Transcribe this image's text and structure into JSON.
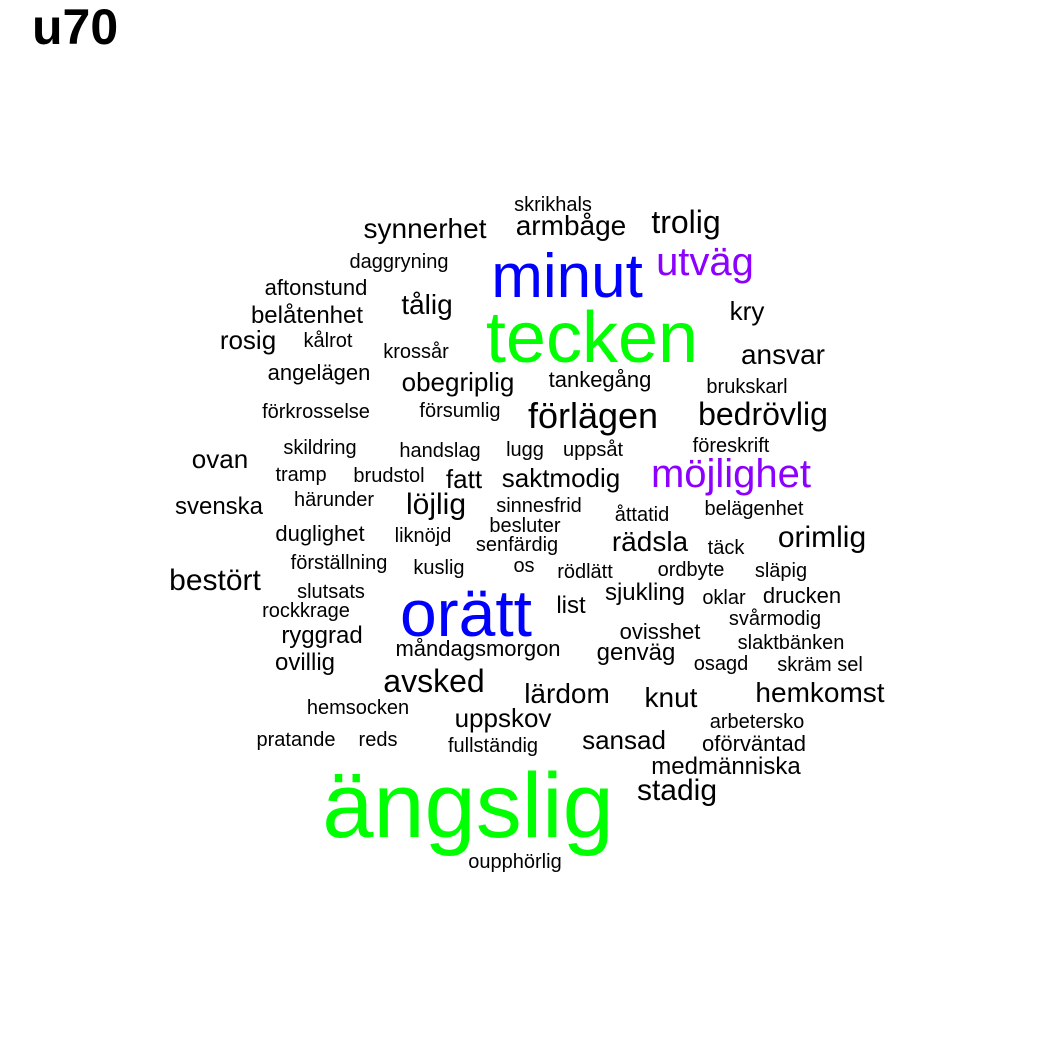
{
  "title": "u70",
  "colors": {
    "black": "#000000",
    "blue": "#0000ff",
    "green": "#00ff00",
    "purple": "#8b00ff"
  },
  "words": [
    {
      "text": "ängslig",
      "color": "#00ff00"
    },
    {
      "text": "tecken",
      "color": "#00ff00"
    },
    {
      "text": "orätt",
      "color": "#0000ff"
    },
    {
      "text": "minut",
      "color": "#0000ff"
    },
    {
      "text": "möjlighet",
      "color": "#8b00ff"
    },
    {
      "text": "utväg",
      "color": "#8b00ff"
    },
    {
      "text": "förlägen",
      "color": "#000000"
    },
    {
      "text": "trolig",
      "color": "#000000"
    },
    {
      "text": "bedrövlig",
      "color": "#000000"
    },
    {
      "text": "avsked",
      "color": "#000000"
    },
    {
      "text": "synnerhet",
      "color": "#000000"
    },
    {
      "text": "armbåge",
      "color": "#000000"
    },
    {
      "text": "tålig",
      "color": "#000000"
    },
    {
      "text": "ansvar",
      "color": "#000000"
    },
    {
      "text": "obegriplig",
      "color": "#000000"
    },
    {
      "text": "rädsla",
      "color": "#000000"
    },
    {
      "text": "orimlig",
      "color": "#000000"
    },
    {
      "text": "bestört",
      "color": "#000000"
    },
    {
      "text": "löjlig",
      "color": "#000000"
    },
    {
      "text": "lärdom",
      "color": "#000000"
    },
    {
      "text": "knut",
      "color": "#000000"
    },
    {
      "text": "hemkomst",
      "color": "#000000"
    },
    {
      "text": "uppskov",
      "color": "#000000"
    },
    {
      "text": "sansad",
      "color": "#000000"
    },
    {
      "text": "stadig",
      "color": "#000000"
    },
    {
      "text": "saktmodig",
      "color": "#000000"
    },
    {
      "text": "fatt",
      "color": "#000000"
    },
    {
      "text": "ovan",
      "color": "#000000"
    },
    {
      "text": "svenska",
      "color": "#000000"
    },
    {
      "text": "belåtenhet",
      "color": "#000000"
    },
    {
      "text": "rosig",
      "color": "#000000"
    },
    {
      "text": "kry",
      "color": "#000000"
    },
    {
      "text": "list",
      "color": "#000000"
    },
    {
      "text": "genväg",
      "color": "#000000"
    },
    {
      "text": "ovillig",
      "color": "#000000"
    },
    {
      "text": "ryggrad",
      "color": "#000000"
    },
    {
      "text": "tankegång",
      "color": "#000000"
    },
    {
      "text": "medmänniska",
      "color": "#000000"
    },
    {
      "text": "ovisshet",
      "color": "#000000"
    },
    {
      "text": "sjukling",
      "color": "#000000"
    },
    {
      "text": "aftonstund",
      "color": "#000000"
    },
    {
      "text": "angelägen",
      "color": "#000000"
    },
    {
      "text": "duglighet",
      "color": "#000000"
    },
    {
      "text": "oförväntad",
      "color": "#000000"
    },
    {
      "text": "skräm sel",
      "color": "#000000"
    },
    {
      "text": "drucken",
      "color": "#000000"
    },
    {
      "text": "måndagsmorgon",
      "color": "#000000"
    },
    {
      "text": "daggryning",
      "color": "#000000"
    },
    {
      "text": "skrikhals",
      "color": "#000000"
    },
    {
      "text": "förkrosselse",
      "color": "#000000"
    },
    {
      "text": "försumlig",
      "color": "#000000"
    },
    {
      "text": "skildring",
      "color": "#000000"
    },
    {
      "text": "handslag",
      "color": "#000000"
    },
    {
      "text": "lugg",
      "color": "#000000"
    },
    {
      "text": "uppsåt",
      "color": "#000000"
    },
    {
      "text": "föreskrift",
      "color": "#000000"
    },
    {
      "text": "tramp",
      "color": "#000000"
    },
    {
      "text": "brudstol",
      "color": "#000000"
    },
    {
      "text": "härunder",
      "color": "#000000"
    },
    {
      "text": "sinnesfrid",
      "color": "#000000"
    },
    {
      "text": "åttatid",
      "color": "#000000"
    },
    {
      "text": "belägenhet",
      "color": "#000000"
    },
    {
      "text": "liknöjd",
      "color": "#000000"
    },
    {
      "text": "besluter",
      "color": "#000000"
    },
    {
      "text": "senfärdig",
      "color": "#000000"
    },
    {
      "text": "täck",
      "color": "#000000"
    },
    {
      "text": "förställning",
      "color": "#000000"
    },
    {
      "text": "kuslig",
      "color": "#000000"
    },
    {
      "text": "os",
      "color": "#000000"
    },
    {
      "text": "rödlätt",
      "color": "#000000"
    },
    {
      "text": "ordbyte",
      "color": "#000000"
    },
    {
      "text": "släpig",
      "color": "#000000"
    },
    {
      "text": "slutsats",
      "color": "#000000"
    },
    {
      "text": "oklar",
      "color": "#000000"
    },
    {
      "text": "rockkrage",
      "color": "#000000"
    },
    {
      "text": "svårmodig",
      "color": "#000000"
    },
    {
      "text": "slaktbänken",
      "color": "#000000"
    },
    {
      "text": "osagd",
      "color": "#000000"
    },
    {
      "text": "hemsocken",
      "color": "#000000"
    },
    {
      "text": "arbetersko",
      "color": "#000000"
    },
    {
      "text": "pratande",
      "color": "#000000"
    },
    {
      "text": "reds",
      "color": "#000000"
    },
    {
      "text": "fullständig",
      "color": "#000000"
    },
    {
      "text": "oupphörlig",
      "color": "#000000"
    },
    {
      "text": "kålrot",
      "color": "#000000"
    },
    {
      "text": "krossår",
      "color": "#000000"
    },
    {
      "text": "brukskarl",
      "color": "#000000"
    }
  ]
}
